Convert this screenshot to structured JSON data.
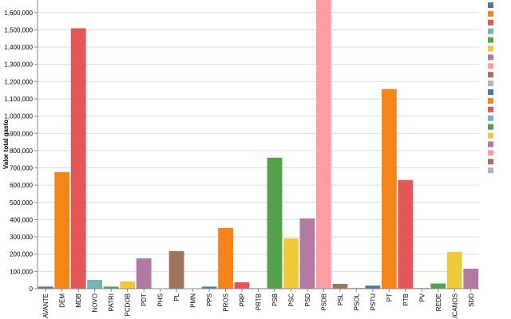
{
  "chart_data": {
    "type": "bar",
    "y_label": "Valor total gasto",
    "categories": [
      "AVANTE",
      "DEM",
      "MDB",
      "NOVO",
      "PATRI",
      "PCDOB",
      "PDT",
      "PHS",
      "PL",
      "PMN",
      "PPS",
      "PROS",
      "PRP",
      "PRTB",
      "PSB",
      "PSC",
      "PSD",
      "PSDB",
      "PSL",
      "PSOL",
      "PSTU",
      "PT",
      "PTB",
      "PV",
      "REDE",
      "BLICANOS",
      "SDD"
    ],
    "values": [
      12000,
      676000,
      1509000,
      51000,
      12000,
      42000,
      176000,
      1000,
      218000,
      1000,
      12000,
      352000,
      37000,
      3000,
      759000,
      292000,
      407000,
      1700000,
      28000,
      5000,
      18000,
      1157000,
      630000,
      4000,
      30000,
      213000,
      116000
    ],
    "colors": [
      "#4c78a8",
      "#f58518",
      "#e45756",
      "#72b7b2",
      "#54a24b",
      "#eeca3b",
      "#b279a2",
      "#ff9da6",
      "#9d755d",
      "#bab0ac",
      "#4c78a8",
      "#f58518",
      "#e45756",
      "#72b7b2",
      "#54a24b",
      "#eeca3b",
      "#b279a2",
      "#ff9da6",
      "#9d755d",
      "#bab0ac",
      "#4c78a8",
      "#f58518",
      "#e45756",
      "#72b7b2",
      "#54a24b",
      "#eeca3b",
      "#b279a2"
    ],
    "ylim": [
      0,
      1673000
    ],
    "yticks": [
      0,
      {
        "value": 100000,
        "label": "100,000"
      },
      {
        "value": 200000,
        "label": "200,000"
      },
      {
        "value": 300000,
        "label": "300,000"
      },
      {
        "value": 400000,
        "label": "400,000"
      },
      {
        "value": 500000,
        "label": "500,000"
      },
      {
        "value": 600000,
        "label": "600,000"
      },
      {
        "value": 700000,
        "label": "700,000"
      },
      {
        "value": 800000,
        "label": "800,000"
      },
      {
        "value": 900000,
        "label": "900,000"
      },
      {
        "value": 1000000,
        "label": "1,000,000"
      },
      {
        "value": 1100000,
        "label": "1,100,000"
      },
      {
        "value": 1200000,
        "label": "1,200,000"
      },
      {
        "value": 1300000,
        "label": "1,300,000"
      },
      {
        "value": 1400000,
        "label": "1,400,000"
      },
      {
        "value": 1500000,
        "label": "1,500,000"
      },
      {
        "value": 1600000,
        "label": "1,600,000"
      }
    ],
    "grid": true
  }
}
